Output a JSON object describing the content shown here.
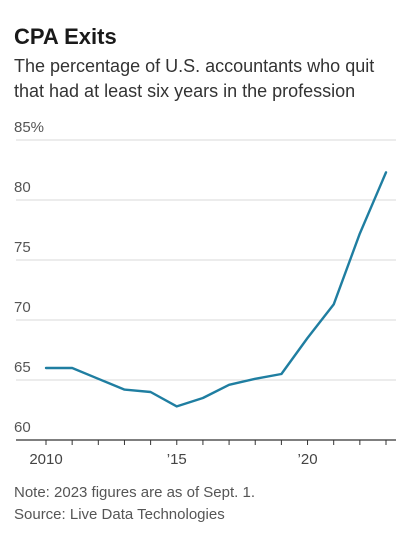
{
  "chart_data": {
    "type": "line",
    "title": "CPA Exits",
    "subtitle": "The percentage of U.S. accountants who quit that had at least six years in the profession",
    "xlabel": "",
    "ylabel": "",
    "ylim": [
      60,
      85
    ],
    "xlim": [
      2010,
      2023
    ],
    "y_ticks": [
      {
        "value": 85,
        "label": "85%"
      },
      {
        "value": 80,
        "label": "80"
      },
      {
        "value": 75,
        "label": "75"
      },
      {
        "value": 70,
        "label": "70"
      },
      {
        "value": 65,
        "label": "65"
      },
      {
        "value": 60,
        "label": "60"
      }
    ],
    "x_ticks": [
      {
        "value": 2010,
        "label": "2010"
      },
      {
        "value": 2015,
        "label": "’15"
      },
      {
        "value": 2020,
        "label": "’20"
      }
    ],
    "grid": true,
    "series": [
      {
        "color": "#1f7ea1",
        "x": [
          2010,
          2011,
          2012,
          2013,
          2014,
          2015,
          2016,
          2017,
          2018,
          2019,
          2020,
          2021,
          2022,
          2023
        ],
        "values": [
          66.0,
          66.0,
          65.1,
          64.2,
          64.0,
          62.8,
          63.5,
          64.6,
          65.1,
          65.5,
          68.5,
          71.3,
          77.2,
          82.3
        ]
      }
    ]
  },
  "note": "Note: 2023 figures are as of Sept. 1.",
  "source": "Source: Live Data Technologies"
}
